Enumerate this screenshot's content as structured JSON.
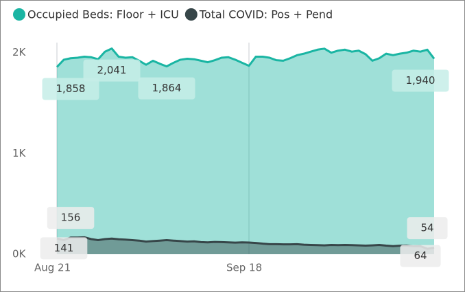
{
  "chart_data": {
    "type": "area",
    "categories": [
      "Aug 21",
      null,
      null,
      null,
      null,
      null,
      null,
      null,
      null,
      null,
      null,
      null,
      null,
      null,
      null,
      null,
      null,
      null,
      null,
      null,
      null,
      null,
      null,
      null,
      null,
      null,
      null,
      null,
      "Sep 18",
      null,
      null,
      null,
      null,
      null,
      null,
      null,
      null,
      null,
      null,
      null,
      null,
      null,
      null,
      null,
      null,
      null,
      null,
      null,
      null,
      null,
      null,
      null,
      null,
      null,
      null,
      null
    ],
    "series": [
      {
        "name": "Occupied Beds: Floor + ICU",
        "color": "#1ab5a3",
        "values": [
          1858,
          1930,
          1945,
          1950,
          1960,
          1955,
          1935,
          2010,
          2041,
          1960,
          1950,
          1955,
          1920,
          1880,
          1920,
          1890,
          1864,
          1900,
          1930,
          1940,
          1935,
          1920,
          1905,
          1925,
          1950,
          1955,
          1930,
          1900,
          1870,
          1960,
          1960,
          1950,
          1925,
          1920,
          1945,
          1975,
          1990,
          2010,
          2030,
          2040,
          2000,
          2020,
          2030,
          2010,
          2020,
          1985,
          1920,
          1945,
          1990,
          1975,
          1990,
          2000,
          2020,
          2010,
          2030,
          1940
        ],
        "value_labels": [
          "1,858",
          null,
          null,
          null,
          null,
          null,
          null,
          null,
          "2,041",
          null,
          null,
          null,
          null,
          null,
          null,
          null,
          "1,864",
          null,
          null,
          null,
          null,
          null,
          null,
          null,
          null,
          null,
          null,
          null,
          null,
          null,
          null,
          null,
          null,
          null,
          null,
          null,
          null,
          null,
          null,
          null,
          null,
          null,
          null,
          null,
          null,
          null,
          null,
          null,
          null,
          null,
          null,
          null,
          null,
          null,
          null,
          "1,940"
        ]
      },
      {
        "name": "Total COVID: Pos + Pend",
        "color": "#374649",
        "values": [
          156,
          141,
          165,
          165,
          168,
          150,
          140,
          150,
          155,
          148,
          145,
          140,
          135,
          125,
          130,
          135,
          140,
          135,
          130,
          125,
          128,
          120,
          118,
          122,
          120,
          118,
          115,
          118,
          116,
          112,
          105,
          100,
          100,
          98,
          98,
          100,
          95,
          92,
          90,
          88,
          92,
          90,
          92,
          90,
          88,
          85,
          88,
          92,
          85,
          80,
          84,
          86,
          78,
          80,
          54,
          64
        ],
        "value_labels": [
          "156",
          "141",
          null,
          null,
          null,
          null,
          null,
          null,
          null,
          null,
          null,
          null,
          null,
          null,
          null,
          null,
          null,
          null,
          null,
          null,
          null,
          null,
          null,
          null,
          null,
          null,
          null,
          null,
          null,
          null,
          null,
          null,
          null,
          null,
          null,
          null,
          null,
          null,
          null,
          null,
          null,
          null,
          null,
          null,
          null,
          null,
          null,
          null,
          null,
          null,
          null,
          null,
          null,
          null,
          "54",
          "64"
        ]
      }
    ],
    "ylim": [
      0,
      2100
    ],
    "yticks": [
      {
        "value": 0,
        "label": "0K"
      },
      {
        "value": 1000,
        "label": "1K"
      },
      {
        "value": 2000,
        "label": "2K"
      }
    ],
    "grid": true
  }
}
